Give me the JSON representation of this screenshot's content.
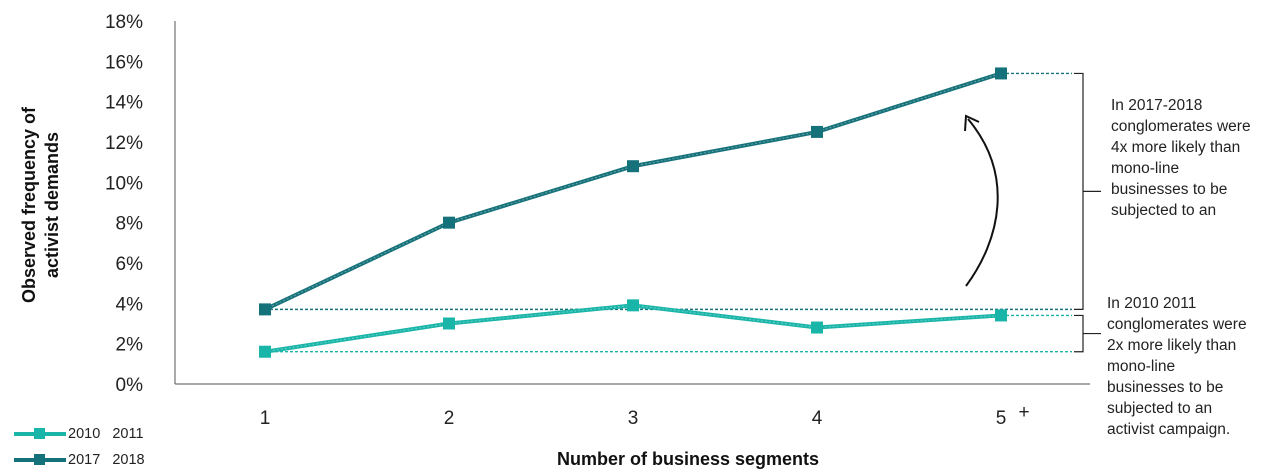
{
  "chart_data": {
    "type": "line",
    "categories": [
      "1",
      "2",
      "3",
      "4",
      "5 +"
    ],
    "x_tick_labels": [
      "1",
      "2",
      "3",
      "4",
      "5",
      "+"
    ],
    "xlabel": "Number of business segments",
    "ylabel": [
      "Observed frequency of",
      "activist demands"
    ],
    "ylim": [
      0,
      18
    ],
    "yticks": [
      "0%",
      "2%",
      "4%",
      "6%",
      "8%",
      "10%",
      "12%",
      "14%",
      "16%",
      "18%"
    ],
    "grid": false,
    "legend_placement": "bottom-left",
    "series": [
      {
        "name": "2010   2011",
        "values": [
          1.6,
          3.0,
          3.9,
          2.8,
          3.4
        ],
        "color": "#19b5a8"
      },
      {
        "name": "2017   2018",
        "values": [
          3.7,
          8.0,
          10.8,
          12.5,
          15.4
        ],
        "color": "#16727a"
      }
    ],
    "annotations": [
      [
        "In 2017-2018",
        "conglomerates were",
        "4x more likely than",
        "mono-line",
        "businesses to be",
        "subjected to an"
      ],
      [
        "In 2010  2011",
        "conglomerates were",
        "2x more likely than",
        "mono-line",
        "businesses to be",
        "subjected to an",
        "activist campaign."
      ]
    ]
  }
}
